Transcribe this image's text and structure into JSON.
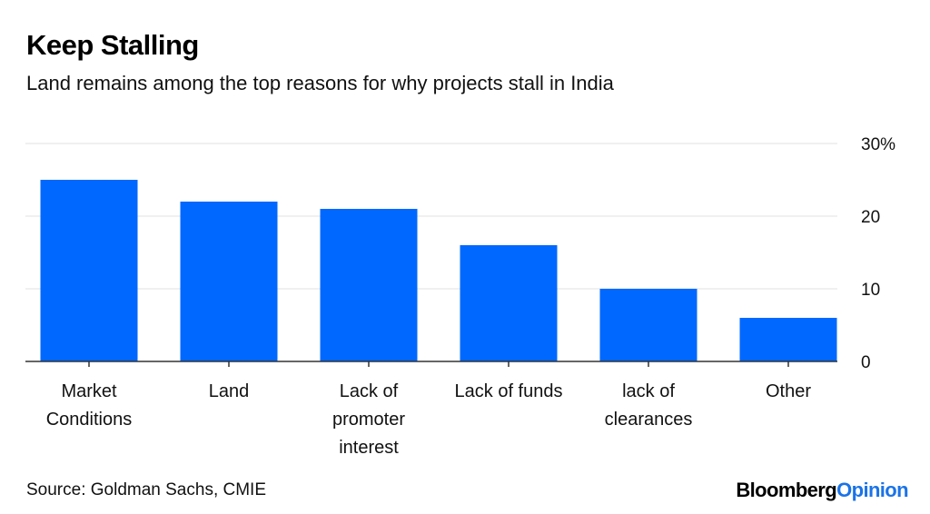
{
  "header": {
    "title": "Keep Stalling",
    "subtitle": "Land remains among the top reasons for why projects stall in India"
  },
  "footer": {
    "source": "Source: Goldman Sachs, CMIE",
    "logo_primary": "Bloomberg",
    "logo_secondary": "Opinion"
  },
  "colors": {
    "bar": "#0068ff",
    "grid": "#e6e6e6",
    "axis": "#333333",
    "logo_accent": "#1a73e8"
  },
  "chart_data": {
    "type": "bar",
    "title": "Keep Stalling",
    "subtitle": "Land remains among the top reasons for why projects stall in India",
    "categories": [
      "Market Conditions",
      "Land",
      "Lack of promoter interest",
      "Lack of funds",
      "lack of clearances",
      "Other"
    ],
    "category_label_lines": [
      [
        "Market",
        "Conditions"
      ],
      [
        "Land"
      ],
      [
        "Lack of",
        "promoter",
        "interest"
      ],
      [
        "Lack of funds"
      ],
      [
        "lack of",
        "clearances"
      ],
      [
        "Other"
      ]
    ],
    "values": [
      25,
      22,
      21,
      16,
      10,
      6
    ],
    "xlabel": "",
    "ylabel": "",
    "ylim": [
      0,
      30
    ],
    "yticks": [
      0,
      10,
      20,
      30
    ],
    "ytick_labels": [
      "0",
      "10",
      "20",
      "30%"
    ],
    "y_axis_side": "right",
    "grid": true,
    "legend": "none",
    "unit": "%"
  }
}
